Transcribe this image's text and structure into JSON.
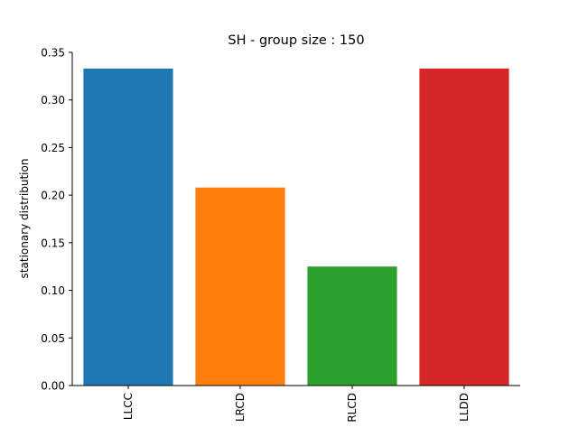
{
  "chart_data": {
    "type": "bar",
    "title": "SH - group size : 150",
    "xlabel": "",
    "ylabel": "stationary distribution",
    "categories": [
      "LLCC",
      "LRCD",
      "RLCD",
      "LLDD"
    ],
    "values": [
      0.333,
      0.208,
      0.125,
      0.333
    ],
    "colors": [
      "#1f77b4",
      "#ff7f0e",
      "#2ca02c",
      "#d62728"
    ],
    "ylim": [
      0,
      0.35
    ],
    "yticks": [
      "0.00",
      "0.05",
      "0.10",
      "0.15",
      "0.20",
      "0.25",
      "0.30",
      "0.35"
    ],
    "grid": false,
    "legend": "none"
  }
}
